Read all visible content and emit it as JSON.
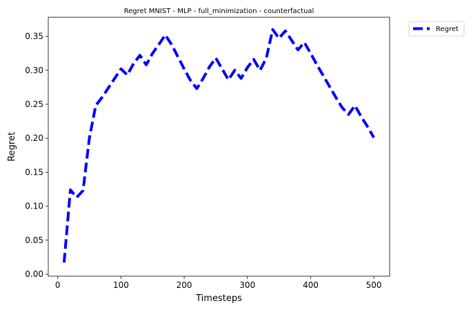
{
  "chart_data": {
    "type": "line",
    "title": "Regret MNIST - MLP - full_minimization - counterfactual",
    "xlabel": "Timesteps",
    "ylabel": "Regret",
    "xlim": [
      -15,
      525
    ],
    "ylim": [
      -0.003,
      0.378
    ],
    "x_ticks": [
      0,
      100,
      200,
      300,
      400,
      500
    ],
    "y_ticks": [
      0.0,
      0.05,
      0.1,
      0.15,
      0.2,
      0.25,
      0.3,
      0.35
    ],
    "x_tick_labels": [
      "0",
      "100",
      "200",
      "300",
      "400",
      "500"
    ],
    "y_tick_labels": [
      "0.00",
      "0.05",
      "0.10",
      "0.15",
      "0.20",
      "0.25",
      "0.30",
      "0.35"
    ],
    "grid": false,
    "legend_position": "outside top-right",
    "series": [
      {
        "name": "Regret",
        "color": "#0000ff",
        "line_style": "dashed",
        "x": [
          10,
          20,
          30,
          40,
          50,
          60,
          70,
          80,
          90,
          100,
          110,
          120,
          130,
          140,
          150,
          160,
          170,
          180,
          190,
          200,
          210,
          220,
          230,
          240,
          250,
          260,
          270,
          280,
          290,
          300,
          310,
          320,
          330,
          340,
          350,
          360,
          370,
          380,
          390,
          400,
          410,
          420,
          430,
          440,
          450,
          460,
          470,
          480,
          490,
          500
        ],
        "values": [
          0.017,
          0.124,
          0.113,
          0.123,
          0.2,
          0.248,
          0.26,
          0.274,
          0.288,
          0.302,
          0.293,
          0.31,
          0.322,
          0.308,
          0.325,
          0.338,
          0.352,
          0.338,
          0.32,
          0.302,
          0.285,
          0.273,
          0.288,
          0.305,
          0.318,
          0.302,
          0.286,
          0.3,
          0.288,
          0.304,
          0.316,
          0.3,
          0.318,
          0.36,
          0.347,
          0.358,
          0.344,
          0.33,
          0.341,
          0.325,
          0.308,
          0.292,
          0.276,
          0.26,
          0.245,
          0.235,
          0.248,
          0.232,
          0.217,
          0.201
        ]
      }
    ]
  }
}
